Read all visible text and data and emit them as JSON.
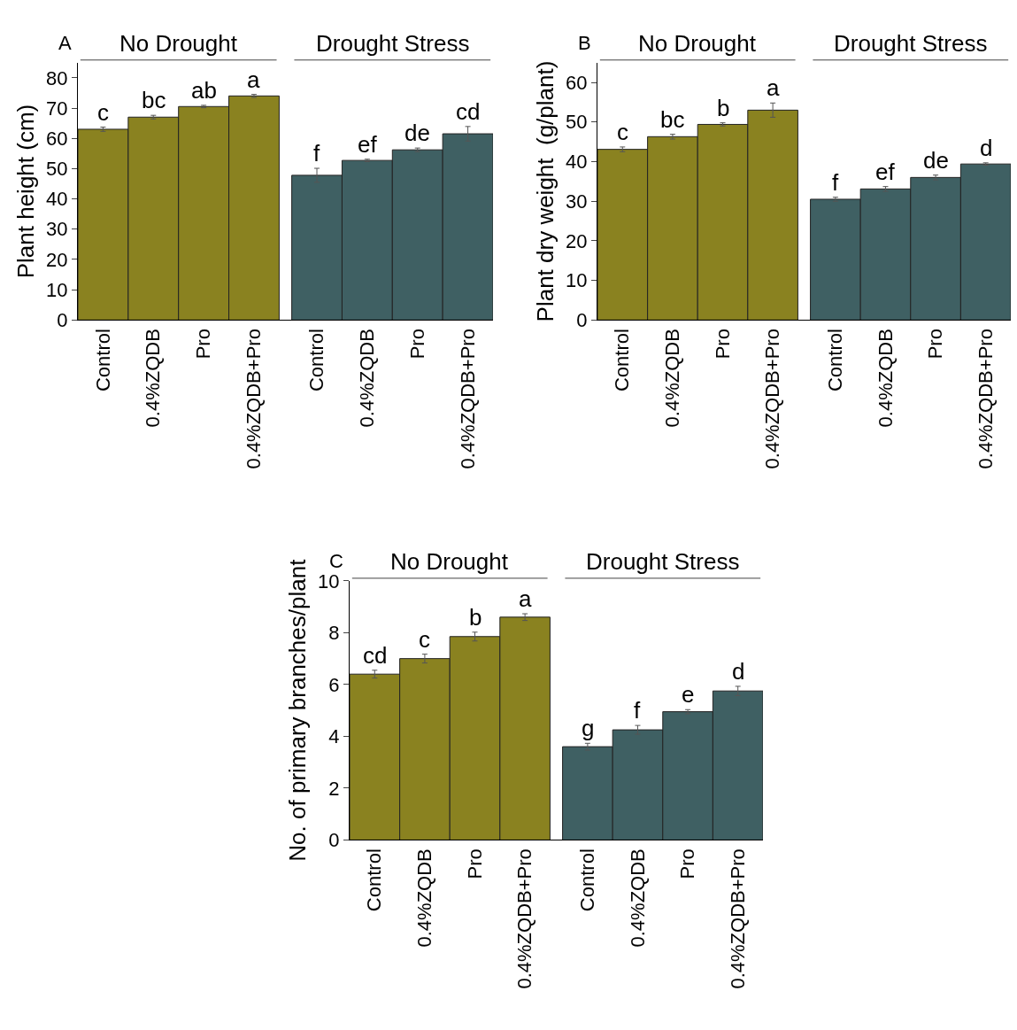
{
  "chart_data": [
    {
      "type": "bar",
      "title": "A",
      "ylabel": "Plant height (cm)",
      "annotations": [
        "No Drought",
        "Drought Stress"
      ],
      "categories": [
        "Control",
        "0.4%ZQDB",
        "Pro",
        "0.4%ZQDB+Pro",
        "Control",
        "0.4%ZQDB",
        "Pro",
        "0.4%ZQDB+Pro"
      ],
      "values": [
        63,
        67,
        70.5,
        74,
        47.8,
        52.7,
        56.2,
        61.5
      ],
      "errors": [
        0.7,
        0.6,
        0.4,
        0.5,
        2.3,
        0.4,
        0.6,
        2.4
      ],
      "value_labels": [
        "c",
        "bc",
        "ab",
        "a",
        "f",
        "ef",
        "de",
        "cd"
      ],
      "colors": [
        "#8a8220",
        "#8a8220",
        "#8a8220",
        "#8a8220",
        "#3f6063",
        "#3f6063",
        "#3f6063",
        "#3f6063"
      ],
      "ylim": [
        0,
        85
      ],
      "yticks": [
        0,
        10,
        20,
        30,
        40,
        50,
        60,
        70,
        80
      ]
    },
    {
      "type": "bar",
      "title": "B",
      "ylabel": "Plant dry weight  (g/plant)",
      "annotations": [
        "No Drought",
        "Drought Stress"
      ],
      "categories": [
        "Control",
        "0.4%ZQDB",
        "Pro",
        "0.4%ZQDB+Pro",
        "Control",
        "0.4%ZQDB",
        "Pro",
        "0.4%ZQDB+Pro"
      ],
      "values": [
        43.1,
        46.3,
        49.4,
        53,
        30.5,
        33.1,
        36,
        39.4
      ],
      "errors": [
        0.6,
        0.6,
        0.4,
        1.8,
        0.5,
        0.6,
        0.6,
        0.3
      ],
      "value_labels": [
        "c",
        "bc",
        "b",
        "a",
        "f",
        "ef",
        "de",
        "d"
      ],
      "colors": [
        "#8a8220",
        "#8a8220",
        "#8a8220",
        "#8a8220",
        "#3f6063",
        "#3f6063",
        "#3f6063",
        "#3f6063"
      ],
      "ylim": [
        0,
        65
      ],
      "yticks": [
        0,
        10,
        20,
        30,
        40,
        50,
        60
      ]
    },
    {
      "type": "bar",
      "title": "C",
      "ylabel": "No. of primary branches/plant",
      "annotations": [
        "No Drought",
        "Drought Stress"
      ],
      "categories": [
        "Control",
        "0.4%ZQDB",
        "Pro",
        "0.4%ZQDB+Pro",
        "Control",
        "0.4%ZQDB",
        "Pro",
        "0.4%ZQDB+Pro"
      ],
      "values": [
        6.4,
        7.0,
        7.85,
        8.6,
        3.6,
        4.25,
        4.95,
        5.75
      ],
      "errors": [
        0.15,
        0.17,
        0.17,
        0.13,
        0.13,
        0.17,
        0.08,
        0.18
      ],
      "value_labels": [
        "cd",
        "c",
        "b",
        "a",
        "g",
        "f",
        "e",
        "d"
      ],
      "colors": [
        "#8a8220",
        "#8a8220",
        "#8a8220",
        "#8a8220",
        "#3f6063",
        "#3f6063",
        "#3f6063",
        "#3f6063"
      ],
      "ylim": [
        0,
        10
      ],
      "yticks": [
        0,
        2,
        4,
        6,
        8,
        10
      ]
    }
  ]
}
